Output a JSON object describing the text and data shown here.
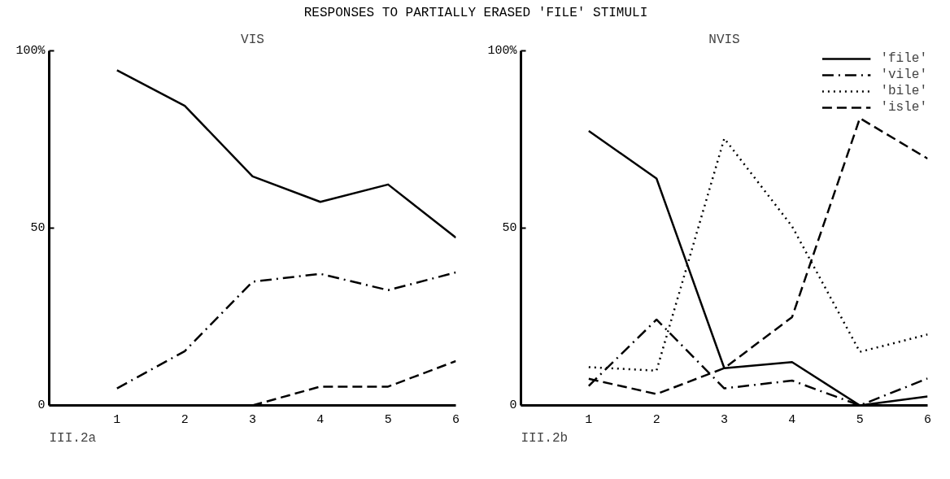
{
  "chart_data": [
    {
      "type": "line",
      "title": "RESPONSES TO PARTIALLY ERASED 'FILE' STIMULI",
      "subtitle": "VIS",
      "annotations": [
        "III.2a"
      ],
      "x": [
        1,
        2,
        3,
        4,
        5,
        6
      ],
      "xlim": [
        0,
        6
      ],
      "xticks": [
        1,
        2,
        3,
        4,
        5,
        6
      ],
      "ylim": [
        0,
        100
      ],
      "yticks": [
        0,
        50,
        {
          "value": 100,
          "label": "100%"
        }
      ],
      "grid": false,
      "legend": false,
      "marker": "none",
      "series": [
        {
          "color": "#000000",
          "line_style": "solid",
          "values": [
            94.5,
            84.5,
            64.6,
            57.4,
            62.3,
            47.3
          ]
        },
        {
          "color": "#000000",
          "line_style": "dashdot",
          "values": [
            4.8,
            15.3,
            34.9,
            37.1,
            32.5,
            37.5
          ]
        },
        {
          "color": "#000000",
          "line_style": "dashed",
          "values": [
            null,
            null,
            0,
            5.3,
            5.3,
            12.5
          ]
        }
      ]
    },
    {
      "type": "line",
      "title": "NVIS",
      "annotations": [
        "III.2b"
      ],
      "x": [
        1,
        2,
        3,
        4,
        5,
        6
      ],
      "xlim": [
        0,
        6
      ],
      "xticks": [
        1,
        2,
        3,
        4,
        5,
        6
      ],
      "ylim": [
        0,
        100
      ],
      "yticks": [
        0,
        50,
        {
          "value": 100,
          "label": "100%"
        }
      ],
      "grid": false,
      "legend": "top right",
      "marker": "none",
      "series": [
        {
          "name": "'file'",
          "color": "#000000",
          "line_style": "solid",
          "values": [
            77.4,
            64,
            10.5,
            12.2,
            0,
            2.5
          ]
        },
        {
          "name": "'vile'",
          "color": "#000000",
          "line_style": "dashdot",
          "values": [
            5.5,
            24.2,
            4.8,
            7,
            0,
            7.6
          ]
        },
        {
          "name": "'bile'",
          "color": "#000000",
          "line_style": "dotted",
          "values": [
            10.8,
            9.8,
            75.3,
            50.5,
            15.1,
            20
          ]
        },
        {
          "name": "'isle'",
          "color": "#000000",
          "line_style": "dashed",
          "values": [
            7.5,
            3.2,
            10.5,
            24.9,
            81,
            69.6
          ]
        }
      ]
    }
  ]
}
